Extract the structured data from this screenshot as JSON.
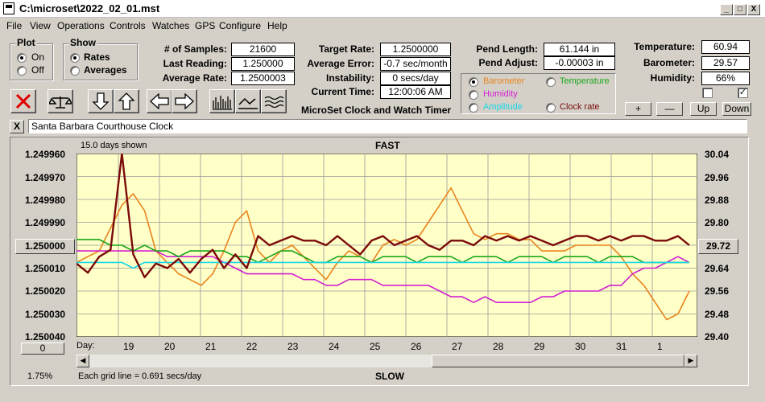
{
  "window": {
    "title": "C:\\microset\\2022_02_01.mst",
    "min": "_",
    "max": "□",
    "close": "X"
  },
  "menu": [
    "File",
    "View",
    "Operations",
    "Controls",
    "Watches",
    "GPS",
    "Configure",
    "Help"
  ],
  "plot_group": {
    "title": "Plot",
    "on": "On",
    "off": "Off",
    "selected": "On"
  },
  "show_group": {
    "title": "Show",
    "rates": "Rates",
    "averages": "Averages",
    "selected": "Rates"
  },
  "stats": {
    "samples_label": "# of Samples:",
    "samples": "21600",
    "last_label": "Last Reading:",
    "last": "1.250000",
    "avg_label": "Average Rate:",
    "avg": "1.2500003"
  },
  "targets": {
    "target_label": "Target Rate:",
    "target": "1.2500000",
    "error_label": "Average Error:",
    "error": "-0.7 sec/month",
    "instab_label": "Instability:",
    "instab": "0 secs/day",
    "time_label": "Current Time:",
    "time": "12:00:06 AM"
  },
  "app_caption": "MicroSet Clock and Watch Timer",
  "pendulum": {
    "length_label": "Pend Length:",
    "length": "61.144 in",
    "adjust_label": "Pend Adjust:",
    "adjust": "-0.00003 in"
  },
  "series_select": {
    "barometer": "Barometer",
    "temperature": "Temperature",
    "humidity": "Humidity",
    "amplitude": "Amplitude",
    "clock_rate": "Clock rate",
    "selected": "Barometer",
    "colors": {
      "barometer": "#e8841c",
      "temperature": "#1aa61a",
      "humidity": "#d21fd2",
      "amplitude": "#19d6e6",
      "clock_rate": "#7b0a0a"
    }
  },
  "environment": {
    "temp_label": "Temperature:",
    "temp": "60.94",
    "baro_label": "Barometer:",
    "baro": "29.57",
    "humid_label": "Humidity:",
    "humid": "66%"
  },
  "adjust_buttons": {
    "plus": "+",
    "minus": "—",
    "up": "Up",
    "down": "Down"
  },
  "clock_name": "Santa Barbara Courthouse Clock",
  "clear_button": "X",
  "chart_data": {
    "type": "line",
    "days_shown": "15.0 days shown",
    "top_label": "FAST",
    "bottom_label": "SLOW",
    "grid_note": "Each grid line = 0.691 secs/day",
    "x_prefix": "Day:",
    "x_labels": [
      "19",
      "20",
      "21",
      "22",
      "23",
      "24",
      "25",
      "26",
      "27",
      "28",
      "29",
      "30",
      "31",
      "1"
    ],
    "left_ticks": [
      "1.249960",
      "1.249970",
      "1.249980",
      "1.249990",
      "1.250000",
      "1.250010",
      "1.250020",
      "1.250030",
      "1.250040"
    ],
    "left_center_button": "1.250000",
    "right_ticks": [
      "30.04",
      "29.96",
      "29.88",
      "29.80",
      "29.72",
      "29.64",
      "29.56",
      "29.48",
      "29.40"
    ],
    "right_center_button": "29.72",
    "left_bottom_button": "0",
    "percent": "1.75%",
    "series": [
      {
        "name": "Barometer",
        "color": "#e8841c",
        "values": [
          29.66,
          29.68,
          29.7,
          29.78,
          29.86,
          29.9,
          29.84,
          29.7,
          29.66,
          29.62,
          29.6,
          29.58,
          29.62,
          29.7,
          29.8,
          29.84,
          29.7,
          29.66,
          29.7,
          29.72,
          29.68,
          29.64,
          29.6,
          29.66,
          29.7,
          29.68,
          29.66,
          29.72,
          29.74,
          29.72,
          29.74,
          29.8,
          29.86,
          29.92,
          29.84,
          29.76,
          29.74,
          29.76,
          29.76,
          29.74,
          29.74,
          29.7,
          29.7,
          29.7,
          29.72,
          29.72,
          29.72,
          29.72,
          29.68,
          29.62,
          29.58,
          29.52,
          29.46,
          29.48,
          29.56
        ]
      },
      {
        "name": "Clock rate",
        "color": "#7b0a0a",
        "values": [
          1.250008,
          1.250012,
          1.250005,
          1.250002,
          1.24996,
          1.250004,
          1.250014,
          1.250008,
          1.25001,
          1.250006,
          1.250012,
          1.250006,
          1.250002,
          1.25001,
          1.250004,
          1.25001,
          1.249996,
          1.25,
          1.249998,
          1.249996,
          1.249998,
          1.249998,
          1.25,
          1.249996,
          1.25,
          1.250004,
          1.249998,
          1.249996,
          1.25,
          1.249998,
          1.249996,
          1.25,
          1.250002,
          1.249998,
          1.249998,
          1.25,
          1.249996,
          1.249998,
          1.249996,
          1.249998,
          1.249996,
          1.249998,
          1.25,
          1.249998,
          1.249996,
          1.249996,
          1.249998,
          1.249996,
          1.249998,
          1.249996,
          1.249996,
          1.249998,
          1.249998,
          1.249996,
          1.25
        ]
      },
      {
        "name": "Temperature",
        "color": "#1aa61a",
        "values": [
          29.74,
          29.74,
          29.74,
          29.72,
          29.72,
          29.7,
          29.72,
          29.7,
          29.7,
          29.68,
          29.7,
          29.7,
          29.7,
          29.7,
          29.68,
          29.68,
          29.66,
          29.68,
          29.7,
          29.7,
          29.68,
          29.66,
          29.66,
          29.68,
          29.68,
          29.68,
          29.66,
          29.68,
          29.68,
          29.68,
          29.66,
          29.68,
          29.68,
          29.68,
          29.66,
          29.68,
          29.68,
          29.68,
          29.66,
          29.68,
          29.68,
          29.68,
          29.66,
          29.68,
          29.68,
          29.68,
          29.66,
          29.68,
          29.68,
          29.68,
          29.66,
          29.66,
          29.66,
          29.66,
          29.66
        ]
      },
      {
        "name": "Humidity",
        "color": "#d21fd2",
        "values": [
          29.7,
          29.7,
          29.7,
          29.7,
          29.7,
          29.7,
          29.7,
          29.7,
          29.68,
          29.68,
          29.68,
          29.68,
          29.68,
          29.66,
          29.64,
          29.62,
          29.62,
          29.62,
          29.62,
          29.62,
          29.6,
          29.6,
          29.58,
          29.58,
          29.6,
          29.6,
          29.6,
          29.58,
          29.58,
          29.58,
          29.58,
          29.58,
          29.56,
          29.54,
          29.54,
          29.52,
          29.54,
          29.52,
          29.52,
          29.52,
          29.52,
          29.54,
          29.54,
          29.56,
          29.56,
          29.56,
          29.56,
          29.58,
          29.58,
          29.62,
          29.64,
          29.64,
          29.66,
          29.68,
          29.66
        ]
      },
      {
        "name": "Amplitude",
        "color": "#19d6e6",
        "values": [
          29.66,
          29.66,
          29.66,
          29.66,
          29.66,
          29.64,
          29.66,
          29.66,
          29.66,
          29.66,
          29.66,
          29.66,
          29.66,
          29.66,
          29.66,
          29.66,
          29.66,
          29.66,
          29.66,
          29.66,
          29.66,
          29.66,
          29.66,
          29.66,
          29.66,
          29.66,
          29.66,
          29.66,
          29.66,
          29.66,
          29.66,
          29.66,
          29.66,
          29.66,
          29.66,
          29.66,
          29.66,
          29.66,
          29.66,
          29.66,
          29.66,
          29.66,
          29.66,
          29.66,
          29.66,
          29.66,
          29.66,
          29.66,
          29.66,
          29.66,
          29.66,
          29.66,
          29.66,
          29.66,
          29.66
        ]
      }
    ]
  }
}
